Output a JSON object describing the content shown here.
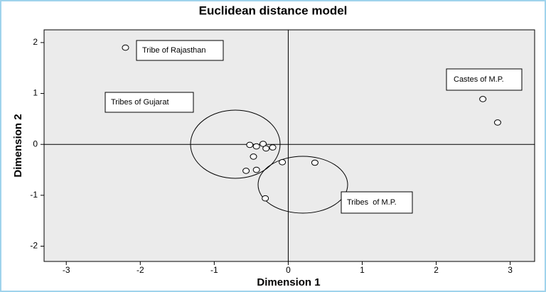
{
  "chart_data": {
    "type": "scatter",
    "title": "Euclidean distance model",
    "x_label": "Dimension 1",
    "y_label": "Dimension 2",
    "x": [
      -2.2,
      2.63,
      2.83,
      -0.52,
      -0.43,
      -0.34,
      -0.3,
      -0.21,
      -0.47,
      -0.57,
      -0.43,
      -0.08,
      0.36,
      -0.31
    ],
    "values": [
      1.9,
      0.89,
      0.43,
      -0.01,
      -0.04,
      0.01,
      -0.08,
      -0.06,
      -0.24,
      -0.52,
      -0.5,
      -0.35,
      -0.36,
      -1.06
    ],
    "xlim": [
      -3.3,
      3.33
    ],
    "ylim": [
      -2.3,
      2.25
    ],
    "xticks": [
      -3,
      -2,
      -1,
      0,
      1,
      2,
      3
    ],
    "yticks": [
      -2,
      -1,
      0,
      1,
      2
    ],
    "reference_lines": {
      "x": 0,
      "y": 0
    },
    "annotations": [
      "Tribe of Rajasthan",
      "Tribes of Gujarat",
      "Castes of M.P.",
      "Tribes  of M.P."
    ]
  }
}
